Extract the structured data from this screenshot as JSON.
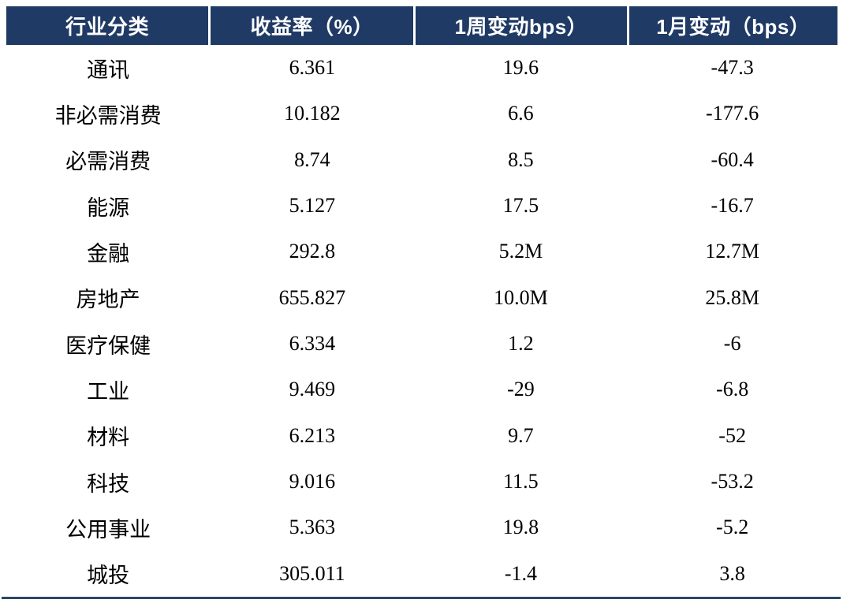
{
  "colors": {
    "header_bg": "#1f3a64",
    "header_text": "#ffffff",
    "body_text": "#000000",
    "bottom_rule": "#2c4568"
  },
  "table": {
    "columns": [
      {
        "label": "行业分类"
      },
      {
        "label": "收益率（%）"
      },
      {
        "label": "1周变动bps）"
      },
      {
        "label": "1月变动（bps）"
      }
    ],
    "rows": [
      {
        "industry": "通讯",
        "yield": "6.361",
        "week_change": "19.6",
        "month_change": "-47.3"
      },
      {
        "industry": "非必需消费",
        "yield": "10.182",
        "week_change": "6.6",
        "month_change": "-177.6"
      },
      {
        "industry": "必需消费",
        "yield": "8.74",
        "week_change": "8.5",
        "month_change": "-60.4"
      },
      {
        "industry": "能源",
        "yield": "5.127",
        "week_change": "17.5",
        "month_change": "-16.7"
      },
      {
        "industry": "金融",
        "yield": "292.8",
        "week_change": "5.2M",
        "month_change": "12.7M"
      },
      {
        "industry": "房地产",
        "yield": "655.827",
        "week_change": "10.0M",
        "month_change": "25.8M"
      },
      {
        "industry": "医疗保健",
        "yield": "6.334",
        "week_change": "1.2",
        "month_change": "-6"
      },
      {
        "industry": "工业",
        "yield": "9.469",
        "week_change": "-29",
        "month_change": "-6.8"
      },
      {
        "industry": "材料",
        "yield": "6.213",
        "week_change": "9.7",
        "month_change": "-52"
      },
      {
        "industry": "科技",
        "yield": "9.016",
        "week_change": "11.5",
        "month_change": "-53.2"
      },
      {
        "industry": "公用事业",
        "yield": "5.363",
        "week_change": "19.8",
        "month_change": "-5.2"
      },
      {
        "industry": "城投",
        "yield": "305.011",
        "week_change": "-1.4",
        "month_change": "3.8"
      }
    ]
  }
}
